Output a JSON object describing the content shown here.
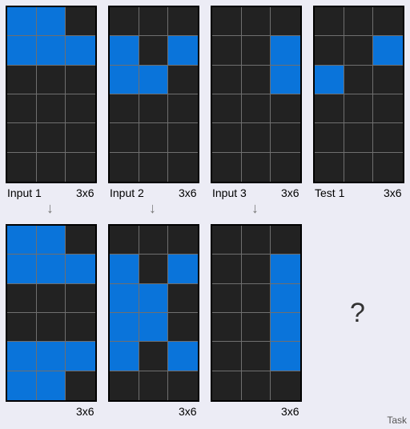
{
  "colors": {
    "background": "#222222",
    "fill": "#0a74da",
    "grid_line": "#6f6f6f",
    "page": "#ececf5"
  },
  "pairs": [
    {
      "input": {
        "label": "Input 1",
        "size": "3x6",
        "cells": [
          [
            1,
            1,
            0
          ],
          [
            1,
            1,
            1
          ],
          [
            0,
            0,
            0
          ],
          [
            0,
            0,
            0
          ],
          [
            0,
            0,
            0
          ],
          [
            0,
            0,
            0
          ]
        ]
      },
      "output": {
        "size": "3x6",
        "cells": [
          [
            1,
            1,
            0
          ],
          [
            1,
            1,
            1
          ],
          [
            0,
            0,
            0
          ],
          [
            0,
            0,
            0
          ],
          [
            1,
            1,
            1
          ],
          [
            1,
            1,
            0
          ]
        ]
      }
    },
    {
      "input": {
        "label": "Input 2",
        "size": "3x6",
        "cells": [
          [
            0,
            0,
            0
          ],
          [
            1,
            0,
            1
          ],
          [
            1,
            1,
            0
          ],
          [
            0,
            0,
            0
          ],
          [
            0,
            0,
            0
          ],
          [
            0,
            0,
            0
          ]
        ]
      },
      "output": {
        "size": "3x6",
        "cells": [
          [
            0,
            0,
            0
          ],
          [
            1,
            0,
            1
          ],
          [
            1,
            1,
            0
          ],
          [
            1,
            1,
            0
          ],
          [
            1,
            0,
            1
          ],
          [
            0,
            0,
            0
          ]
        ]
      }
    },
    {
      "input": {
        "label": "Input 3",
        "size": "3x6",
        "cells": [
          [
            0,
            0,
            0
          ],
          [
            0,
            0,
            1
          ],
          [
            0,
            0,
            1
          ],
          [
            0,
            0,
            0
          ],
          [
            0,
            0,
            0
          ],
          [
            0,
            0,
            0
          ]
        ]
      },
      "output": {
        "size": "3x6",
        "cells": [
          [
            0,
            0,
            0
          ],
          [
            0,
            0,
            1
          ],
          [
            0,
            0,
            1
          ],
          [
            0,
            0,
            1
          ],
          [
            0,
            0,
            1
          ],
          [
            0,
            0,
            0
          ]
        ]
      }
    }
  ],
  "test": {
    "label": "Test 1",
    "size": "3x6",
    "cells": [
      [
        0,
        0,
        0
      ],
      [
        0,
        0,
        1
      ],
      [
        1,
        0,
        0
      ],
      [
        0,
        0,
        0
      ],
      [
        0,
        0,
        0
      ],
      [
        0,
        0,
        0
      ]
    ]
  },
  "arrow_glyph": "↓",
  "unknown_output": "?",
  "task_label": "Task"
}
